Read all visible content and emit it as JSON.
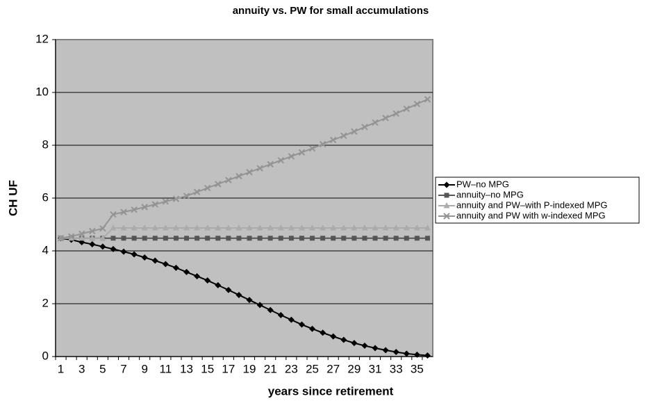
{
  "chart_data": {
    "type": "line",
    "title": "annuity vs. PW for small accumulations",
    "x_label": "years since retirement",
    "y_label": "CH UF",
    "categories": [
      1,
      null,
      3,
      null,
      5,
      null,
      7,
      null,
      9,
      null,
      11,
      null,
      13,
      null,
      15,
      null,
      17,
      null,
      19,
      null,
      21,
      null,
      23,
      null,
      25,
      null,
      27,
      null,
      29,
      null,
      31,
      null,
      33,
      null,
      35,
      null
    ],
    "ylim": [
      0,
      12
    ],
    "yticks": [
      0,
      2,
      4,
      6,
      8,
      10,
      12
    ],
    "grid": true,
    "legend": "right",
    "series": [
      {
        "name": "PW–no MPG",
        "color": "#000000",
        "marker": "diamond",
        "values": [
          4.48,
          4.42,
          4.33,
          4.25,
          4.16,
          4.07,
          3.97,
          3.87,
          3.75,
          3.63,
          3.5,
          3.36,
          3.2,
          3.04,
          2.88,
          2.7,
          2.52,
          2.33,
          2.14,
          1.95,
          1.76,
          1.57,
          1.39,
          1.21,
          1.05,
          0.9,
          0.76,
          0.63,
          0.51,
          0.41,
          0.32,
          0.24,
          0.17,
          0.11,
          0.07,
          0.04
        ]
      },
      {
        "name": "annuity–no MPG",
        "color": "#555555",
        "marker": "square",
        "values": [
          4.48,
          4.48,
          4.48,
          4.48,
          4.48,
          4.48,
          4.48,
          4.48,
          4.48,
          4.48,
          4.48,
          4.48,
          4.48,
          4.48,
          4.48,
          4.48,
          4.48,
          4.48,
          4.48,
          4.48,
          4.48,
          4.48,
          4.48,
          4.48,
          4.48,
          4.48,
          4.48,
          4.48,
          4.48,
          4.48,
          4.48,
          4.48,
          4.48,
          4.48,
          4.48,
          4.48
        ]
      },
      {
        "name": "annuity and PW–with P-indexed MPG",
        "color": "#ababab",
        "marker": "triangle",
        "values": [
          4.48,
          4.48,
          4.48,
          4.48,
          4.48,
          4.87,
          4.87,
          4.87,
          4.87,
          4.87,
          4.87,
          4.87,
          4.87,
          4.87,
          4.87,
          4.87,
          4.87,
          4.87,
          4.87,
          4.87,
          4.87,
          4.87,
          4.87,
          4.87,
          4.87,
          4.87,
          4.87,
          4.87,
          4.87,
          4.87,
          4.87,
          4.87,
          4.87,
          4.87,
          4.87,
          4.87
        ]
      },
      {
        "name": "annuity and PW with w-indexed MPG",
        "color": "#939393",
        "marker": "x",
        "values": [
          4.48,
          4.55,
          4.65,
          4.75,
          4.85,
          5.38,
          5.47,
          5.56,
          5.66,
          5.76,
          5.87,
          5.97,
          6.08,
          6.23,
          6.38,
          6.53,
          6.68,
          6.83,
          6.98,
          7.13,
          7.28,
          7.43,
          7.58,
          7.73,
          7.88,
          8.04,
          8.2,
          8.36,
          8.52,
          8.69,
          8.86,
          9.03,
          9.2,
          9.38,
          9.56,
          9.74
        ]
      }
    ]
  }
}
